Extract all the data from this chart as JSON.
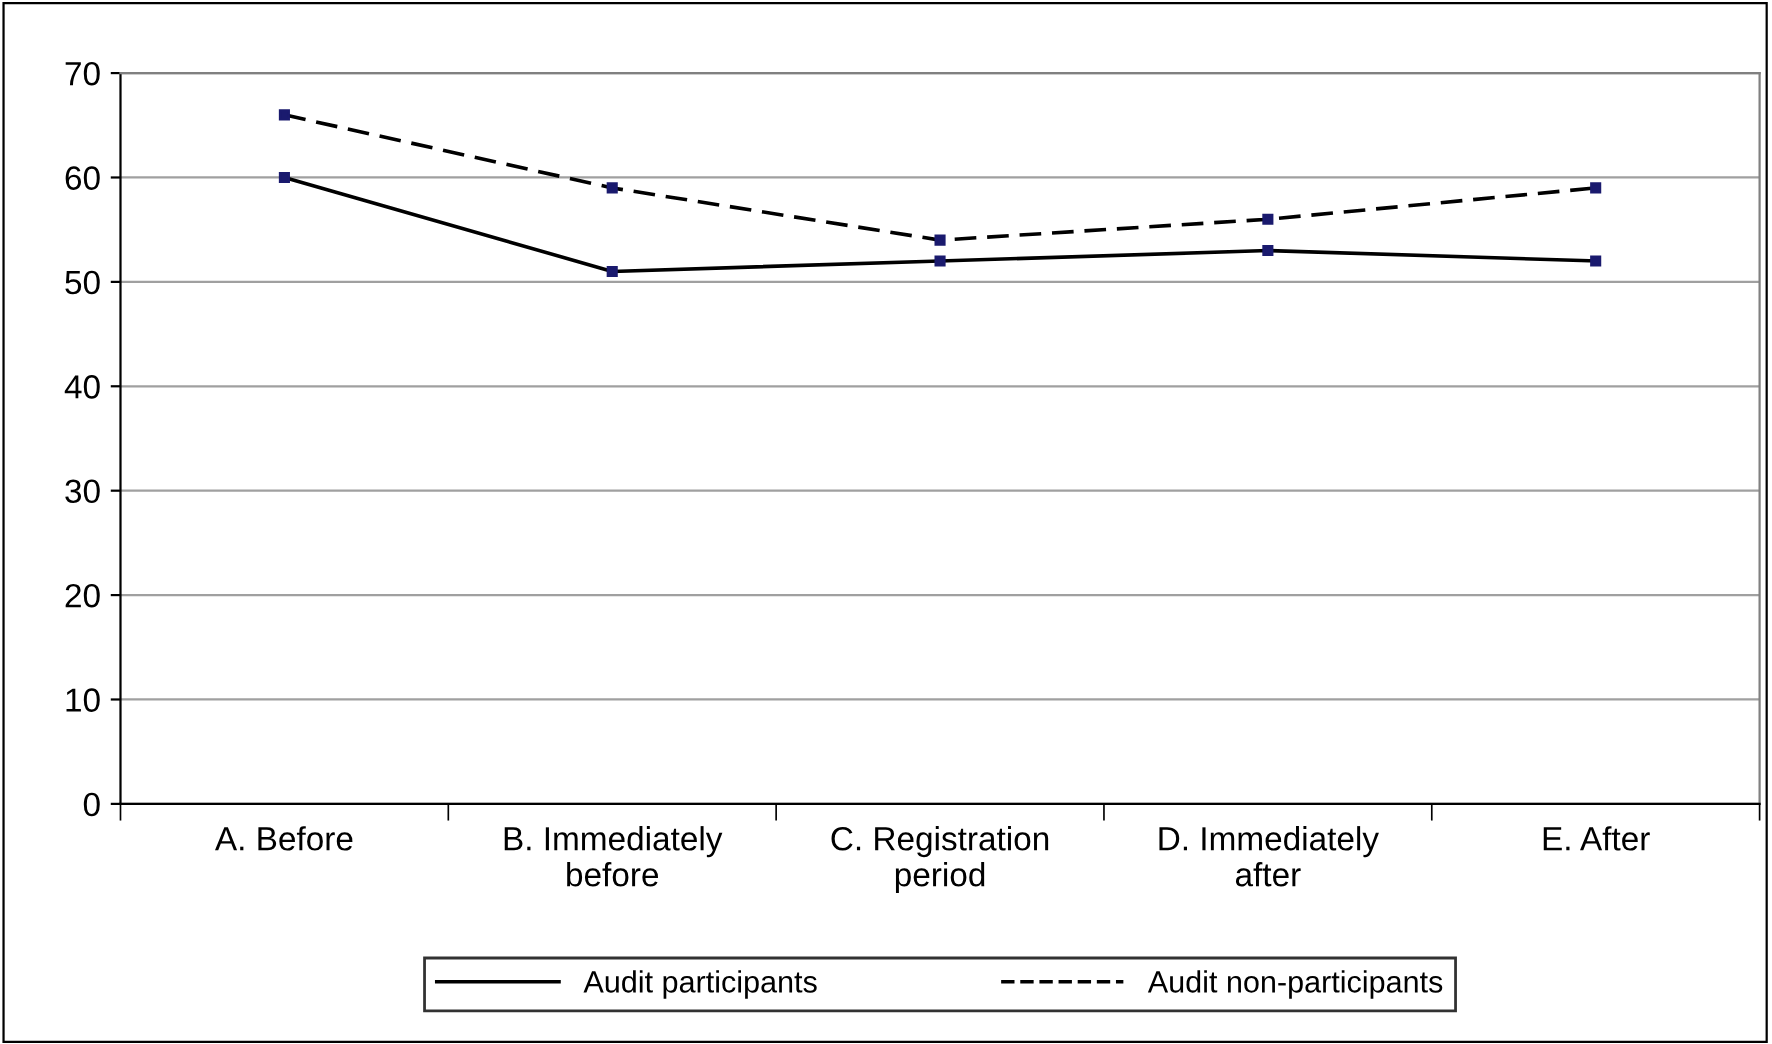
{
  "chart_data": {
    "type": "line",
    "categories": [
      "A. Before",
      "B. Immediately\nbefore",
      "C. Registration\nperiod",
      "D. Immediately\nafter",
      "E. After"
    ],
    "series": [
      {
        "name": "Audit participants",
        "color": "#000000",
        "values": [
          60,
          51,
          52,
          53,
          52
        ],
        "line_style": "solid"
      },
      {
        "name": "Audit non-participants",
        "color": "#000000",
        "values": [
          66,
          59,
          54,
          56,
          59
        ],
        "line_style": "dashed"
      }
    ],
    "ylim": [
      0,
      70
    ],
    "yticks": [
      0,
      10,
      20,
      30,
      40,
      50,
      60,
      70
    ],
    "grid": "y",
    "legend": "bottom",
    "marker": "square"
  }
}
